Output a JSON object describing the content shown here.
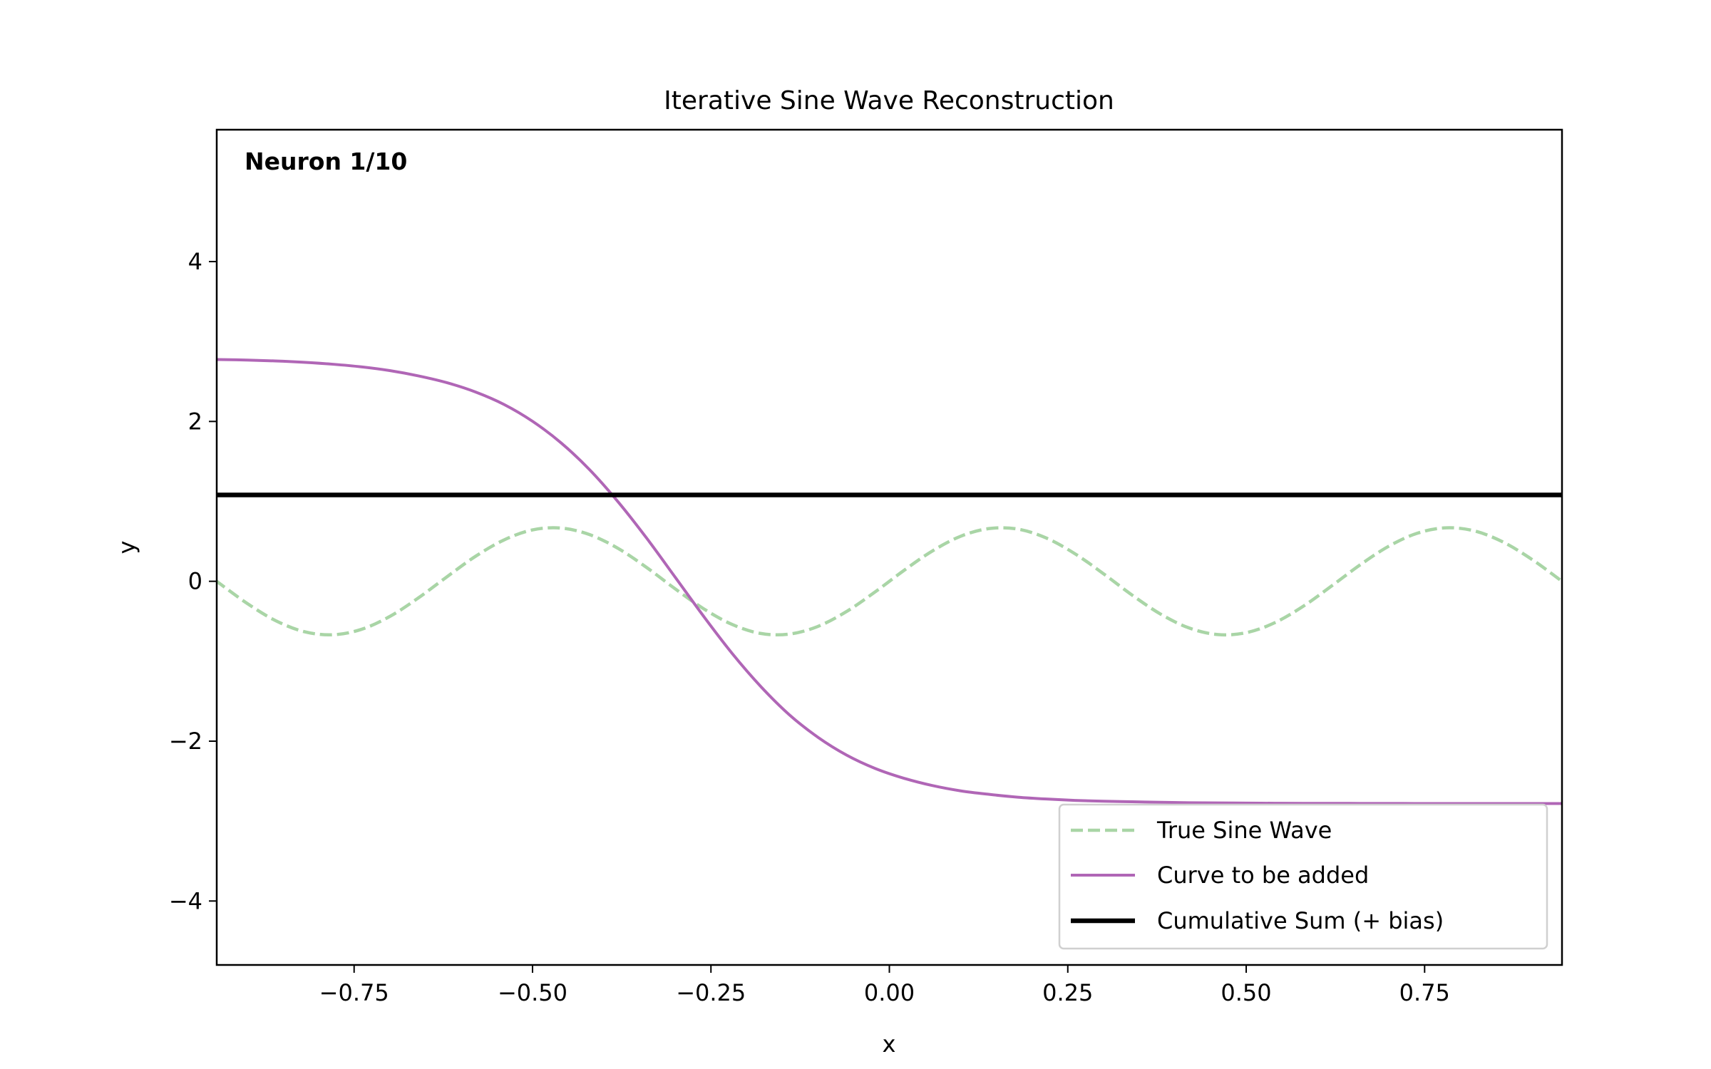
{
  "chart_data": {
    "type": "line",
    "title": "Iterative Sine Wave Reconstruction",
    "xlabel": "x",
    "ylabel": "y",
    "annotation": "Neuron 1/10",
    "xlim": [
      -0.9425,
      0.9425
    ],
    "ylim": [
      -4.8,
      5.65
    ],
    "xticks": [
      -0.75,
      -0.5,
      -0.25,
      0.0,
      0.25,
      0.5,
      0.75
    ],
    "xtick_labels": [
      "−0.75",
      "−0.50",
      "−0.25",
      "0.00",
      "0.25",
      "0.50",
      "0.75"
    ],
    "yticks": [
      -4,
      -2,
      0,
      2,
      4
    ],
    "ytick_labels": [
      "−4",
      "−2",
      "0",
      "2",
      "4"
    ],
    "grid": false,
    "legend_placement": "lower-right",
    "x": [
      -0.94,
      -0.9,
      -0.86,
      -0.82,
      -0.78,
      -0.74,
      -0.7,
      -0.66,
      -0.62,
      -0.58,
      -0.54,
      -0.5,
      -0.46,
      -0.42,
      -0.38,
      -0.34,
      -0.3,
      -0.26,
      -0.22,
      -0.18,
      -0.14,
      -0.1,
      -0.06,
      -0.02,
      0.02,
      0.06,
      0.1,
      0.14,
      0.18,
      0.22,
      0.26,
      0.3,
      0.34,
      0.38,
      0.42,
      0.46,
      0.5,
      0.54,
      0.58,
      0.62,
      0.66,
      0.7,
      0.74,
      0.78,
      0.82,
      0.86,
      0.9,
      0.94
    ],
    "series": [
      {
        "name": "True Sine Wave",
        "color": "#a9d5a6",
        "style": "dashed",
        "values": [
          -0.017,
          -0.276,
          -0.492,
          -0.63,
          -0.669,
          -0.602,
          -0.44,
          -0.208,
          0.056,
          0.312,
          0.517,
          0.643,
          0.666,
          0.584,
          0.411,
          0.172,
          -0.095,
          -0.345,
          -0.541,
          -0.653,
          -0.66,
          -0.564,
          -0.378,
          -0.133,
          0.133,
          0.378,
          0.564,
          0.66,
          0.653,
          0.541,
          0.345,
          0.095,
          -0.172,
          -0.41,
          -0.584,
          -0.666,
          -0.643,
          -0.518,
          -0.312,
          -0.056,
          0.208,
          0.44,
          0.602,
          0.669,
          0.63,
          0.491,
          0.276,
          0.017
        ]
      },
      {
        "name": "Curve to be added",
        "color": "#b066b6",
        "style": "solid",
        "values": [
          2.775,
          2.768,
          2.757,
          2.74,
          2.716,
          2.683,
          2.636,
          2.57,
          2.485,
          2.369,
          2.213,
          2.002,
          1.732,
          1.396,
          0.993,
          0.539,
          0.05,
          -0.441,
          -0.906,
          -1.318,
          -1.671,
          -1.952,
          -2.174,
          -2.341,
          -2.463,
          -2.555,
          -2.622,
          -2.666,
          -2.701,
          -2.724,
          -2.741,
          -2.752,
          -2.758,
          -2.765,
          -2.77,
          -2.773,
          -2.775,
          -2.777,
          -2.778,
          -2.778,
          -2.779,
          -2.779,
          -2.78,
          -2.78,
          -2.78,
          -2.78,
          -2.78,
          -2.78
        ]
      },
      {
        "name": "Cumulative Sum (+ bias)",
        "color": "#000000",
        "style": "solid",
        "values": [
          1.08,
          1.08,
          1.08,
          1.08,
          1.08,
          1.08,
          1.08,
          1.08,
          1.08,
          1.08,
          1.08,
          1.08,
          1.08,
          1.08,
          1.08,
          1.08,
          1.08,
          1.08,
          1.08,
          1.08,
          1.08,
          1.08,
          1.08,
          1.08,
          1.08,
          1.08,
          1.08,
          1.08,
          1.08,
          1.08,
          1.08,
          1.08,
          1.08,
          1.08,
          1.08,
          1.08,
          1.08,
          1.08,
          1.08,
          1.08,
          1.08,
          1.08,
          1.08,
          1.08,
          1.08,
          1.08,
          1.08,
          1.08
        ]
      }
    ]
  }
}
